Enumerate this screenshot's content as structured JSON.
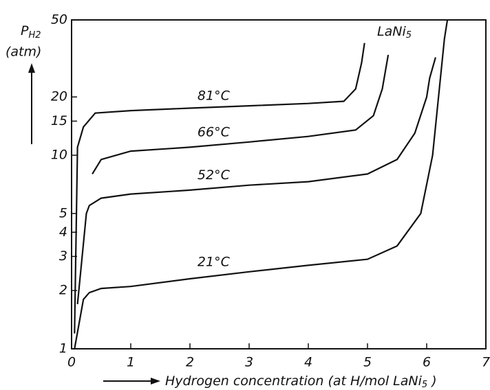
{
  "chart_data": {
    "type": "line",
    "y_label": {
      "main": "P",
      "sub": "H2",
      "unit": "(atm)"
    },
    "x_label": {
      "main": "Hydrogen concentration (at H/mol LaNi",
      "sub": "5",
      "end": " )"
    },
    "annotation": {
      "main": "LaNi",
      "sub": "5"
    },
    "xlim": [
      0,
      7
    ],
    "xticks": [
      0,
      1,
      2,
      3,
      4,
      5,
      6,
      7
    ],
    "ylim": [
      1,
      50
    ],
    "yticks": [
      1,
      2,
      3,
      4,
      5,
      10,
      15,
      20,
      50
    ],
    "log_y": true,
    "color": "#111111",
    "series": [
      {
        "name": "81°C",
        "x": [
          0.05,
          0.1,
          0.2,
          0.4,
          1,
          2,
          3,
          4,
          4.6,
          4.8,
          4.9,
          4.95
        ],
        "values": [
          1.2,
          11,
          14,
          16.5,
          17,
          17.5,
          18,
          18.5,
          19,
          22,
          30,
          38
        ]
      },
      {
        "name": "66°C",
        "x": [
          0.35,
          0.5,
          1,
          2,
          3,
          4,
          4.8,
          5.1,
          5.25,
          5.35
        ],
        "values": [
          8,
          9.5,
          10.5,
          11,
          11.7,
          12.5,
          13.5,
          16,
          22,
          33
        ]
      },
      {
        "name": "52°C",
        "x": [
          0.1,
          0.25,
          0.3,
          0.5,
          1,
          2,
          3,
          4,
          5,
          5.5,
          5.8,
          6,
          6.05,
          6.15
        ],
        "values": [
          1.7,
          5,
          5.5,
          6,
          6.3,
          6.6,
          7,
          7.3,
          8,
          9.5,
          13,
          20,
          25,
          32
        ]
      },
      {
        "name": "21°C",
        "x": [
          0.05,
          0.2,
          0.3,
          0.5,
          1,
          2,
          3,
          4,
          5,
          5.5,
          5.9,
          6.1,
          6.2,
          6.3,
          6.35
        ],
        "values": [
          1,
          1.8,
          1.95,
          2.05,
          2.1,
          2.3,
          2.5,
          2.7,
          2.9,
          3.4,
          5,
          10,
          20,
          40,
          50
        ]
      }
    ]
  }
}
